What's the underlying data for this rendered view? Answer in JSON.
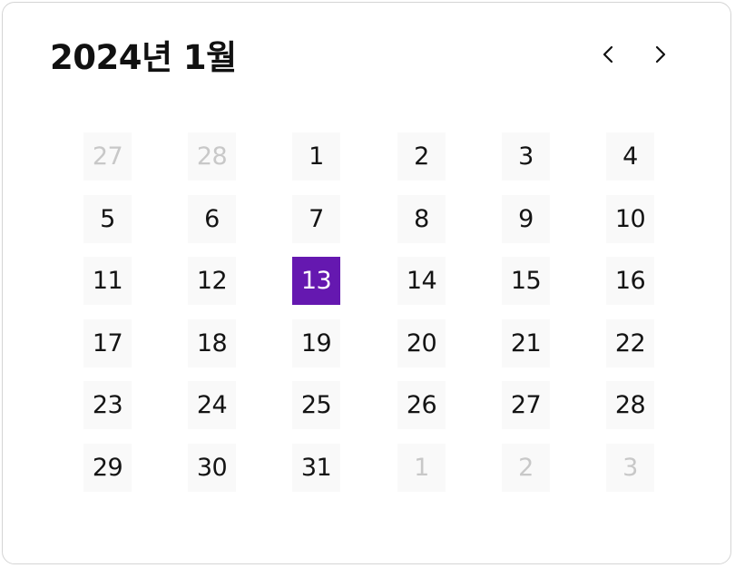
{
  "calendar": {
    "title": "2024년 1월",
    "prev_icon": "chevron-left-icon",
    "next_icon": "chevron-right-icon",
    "selected_color": "#6518b0",
    "outside_color": "#c8c8c8",
    "weeks": [
      [
        {
          "label": "27",
          "outside": true
        },
        {
          "label": "28",
          "outside": true
        },
        {
          "label": "1"
        },
        {
          "label": "2"
        },
        {
          "label": "3"
        },
        {
          "label": "4"
        }
      ],
      [
        {
          "label": "5"
        },
        {
          "label": "6"
        },
        {
          "label": "7"
        },
        {
          "label": "8"
        },
        {
          "label": "9"
        },
        {
          "label": "10"
        }
      ],
      [
        {
          "label": "11"
        },
        {
          "label": "12"
        },
        {
          "label": "13",
          "selected": true
        },
        {
          "label": "14"
        },
        {
          "label": "15"
        },
        {
          "label": "16"
        }
      ],
      [
        {
          "label": "17"
        },
        {
          "label": "18"
        },
        {
          "label": "19"
        },
        {
          "label": "20"
        },
        {
          "label": "21"
        },
        {
          "label": "22"
        }
      ],
      [
        {
          "label": "23"
        },
        {
          "label": "24"
        },
        {
          "label": "25"
        },
        {
          "label": "26"
        },
        {
          "label": "27"
        },
        {
          "label": "28"
        }
      ],
      [
        {
          "label": "29"
        },
        {
          "label": "30"
        },
        {
          "label": "31"
        },
        {
          "label": "1",
          "outside": true
        },
        {
          "label": "2",
          "outside": true
        },
        {
          "label": "3",
          "outside": true
        }
      ]
    ]
  }
}
